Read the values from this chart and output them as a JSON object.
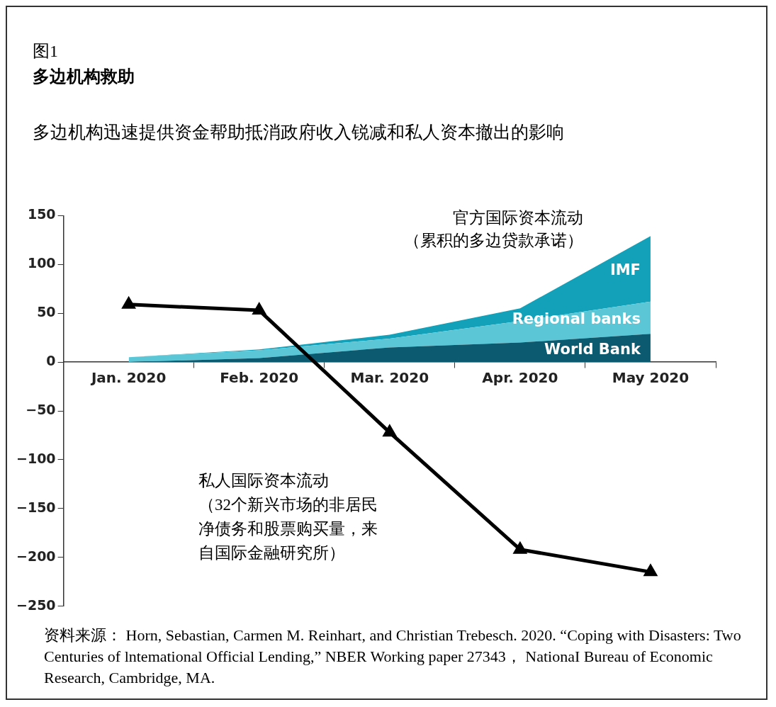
{
  "chart_data": {
    "type": "area",
    "title": "多边机构救助",
    "subtitle": "多边机构迅速提供资金帮助抵消政府收入锐减和私人资本撤出的影响",
    "categories": [
      "Jan. 2020",
      "Feb. 2020",
      "Mar. 2020",
      "Apr. 2020",
      "May 2020"
    ],
    "stacked": true,
    "series": [
      {
        "name": "World Bank",
        "color": "#0b5a70",
        "values": [
          0,
          4,
          15,
          20,
          29
        ]
      },
      {
        "name": "Regional banks",
        "color": "#5bc6d6",
        "values": [
          5,
          8,
          9,
          22,
          33
        ]
      },
      {
        "name": "IMF",
        "color": "#12a1b8",
        "values": [
          0,
          1,
          4,
          13,
          67
        ]
      },
      {
        "type": "line",
        "color": "#000000",
        "marker": "triangle",
        "line_style": "solid",
        "values": [
          59,
          53,
          -72,
          -192,
          -215
        ]
      }
    ],
    "ylim": [
      -250,
      150
    ],
    "yticks": [
      -250,
      -200,
      -150,
      -100,
      -50,
      0,
      50,
      100,
      150
    ],
    "grid": false,
    "legend": false,
    "annotations": [
      "图1",
      "官方国际资本流动（累积的多边贷款承诺）",
      "私人国际资本流动（32个新兴市场的非居民净债务和股票购买量，来自国际金融研究所）",
      "资料来源： Horn, Sebastian, Carmen M. Reinhart, and Christian Trebesch. 2020. “Coping with Disasters: Two Centuries of lntemational Official Lending,” NBER Working paper 27343， NationaI Bureau of Economic Research, Cambridge, MA."
    ]
  }
}
